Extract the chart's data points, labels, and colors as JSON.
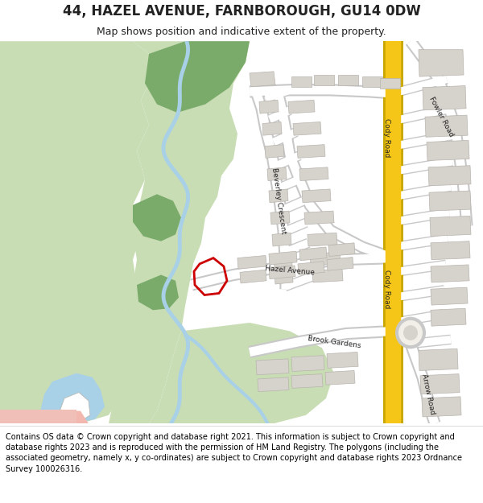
{
  "title_line1": "44, HAZEL AVENUE, FARNBOROUGH, GU14 0DW",
  "title_line2": "Map shows position and indicative extent of the property.",
  "copyright_text": "Contains OS data © Crown copyright and database right 2021. This information is subject to Crown copyright and database rights 2023 and is reproduced with the permission of HM Land Registry. The polygons (including the associated geometry, namely x, y co-ordinates) are subject to Crown copyright and database rights 2023 Ordnance Survey 100026316.",
  "map_bg": "#f2efe9",
  "green_light": "#c9ddb5",
  "green_dark": "#7aab6a",
  "road_yellow": "#f5c518",
  "road_yellow2": "#e8b800",
  "road_gray": "#cccccc",
  "road_white": "#ffffff",
  "building_fill": "#d6d2cc",
  "building_edge": "#b8b4ae",
  "water_blue": "#a8d0e6",
  "property_red": "#cc0000",
  "text_color": "#222222",
  "title_fontsize": 12,
  "subtitle_fontsize": 9,
  "footer_fontsize": 7,
  "road_label_size": 6.5
}
